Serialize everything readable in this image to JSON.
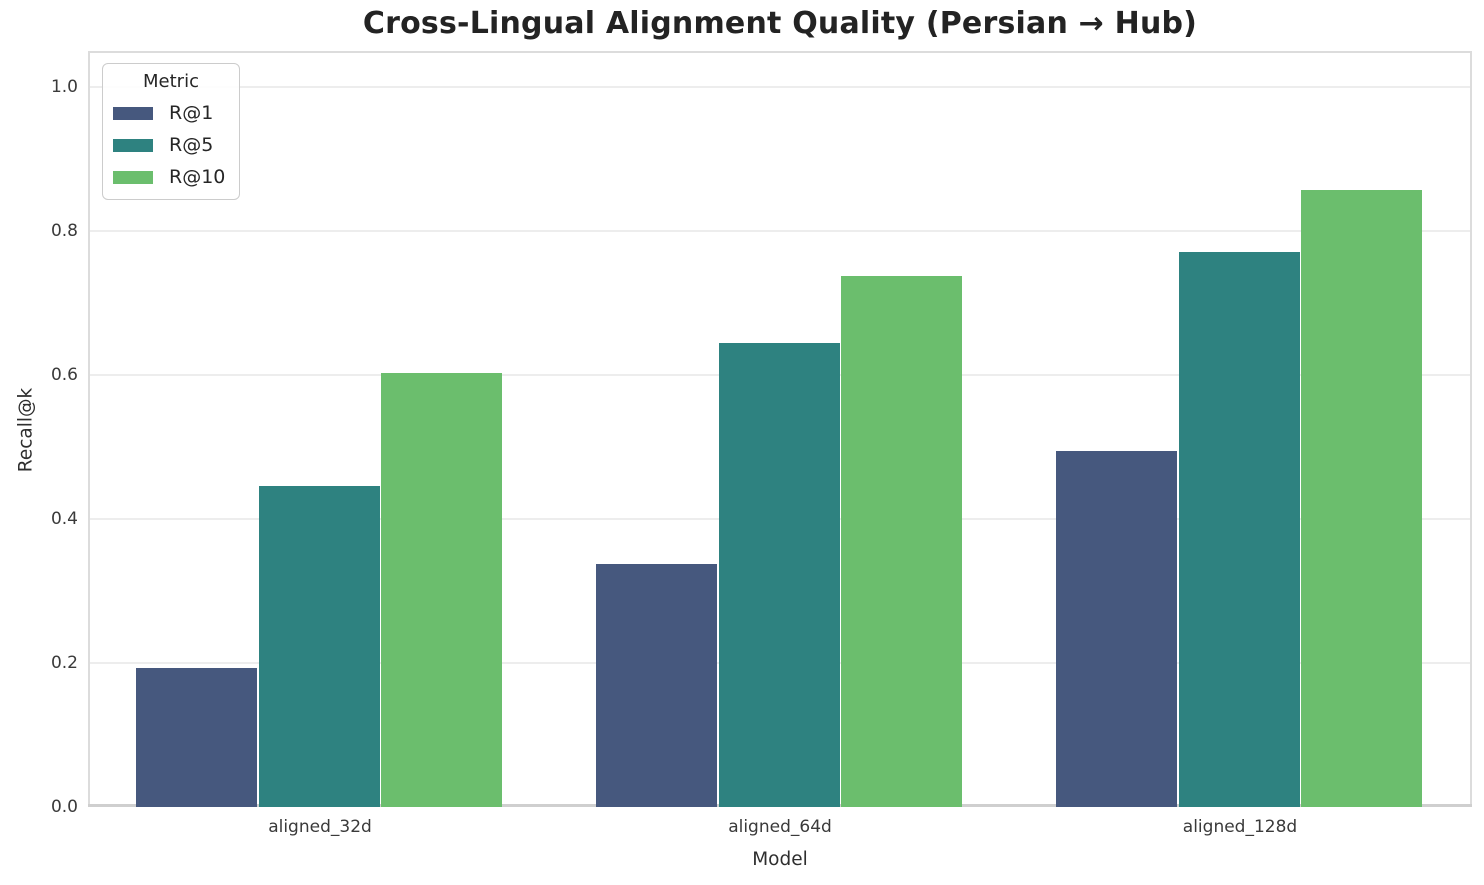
{
  "title": "Cross-Lingual Alignment Quality (Persian → Hub)",
  "chart_data": {
    "type": "bar",
    "title": "Cross-Lingual Alignment Quality (Persian → Hub)",
    "categories": [
      "aligned_32d",
      "aligned_64d",
      "aligned_128d"
    ],
    "series": [
      {
        "name": "R@1",
        "color": "#46587e",
        "values": [
          0.193,
          0.338,
          0.495
        ]
      },
      {
        "name": "R@5",
        "color": "#2e8280",
        "values": [
          0.446,
          0.645,
          0.77
        ]
      },
      {
        "name": "R@10",
        "color": "#6bbe6d",
        "values": [
          0.602,
          0.738,
          0.857
        ]
      }
    ],
    "xlabel": "Model",
    "ylabel": "Recall@k",
    "ylim": [
      0,
      1.047
    ],
    "yticks": [
      0.0,
      0.2,
      0.4,
      0.6,
      0.8,
      1.0
    ],
    "ytick_labels": [
      "0.0",
      "0.2",
      "0.4",
      "0.6",
      "0.8",
      "1.0"
    ],
    "legend_title": "Metric",
    "legend_position": "upper left",
    "grid": true,
    "grid_color": "#ededed",
    "background": "#ffffff"
  }
}
